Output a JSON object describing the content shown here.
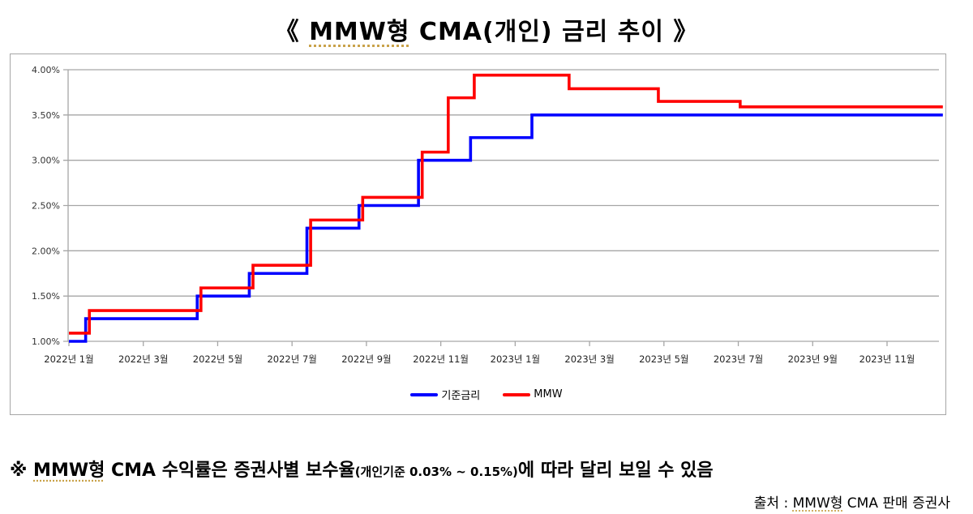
{
  "title": {
    "open_bracket": "《",
    "main_underlined": "MMW형",
    "rest": " CMA(개인) 금리 추이 ",
    "close_bracket": "》"
  },
  "legend": [
    {
      "label": "기준금리",
      "color": "#0000ff"
    },
    {
      "label": "MMW",
      "color": "#ff0000"
    }
  ],
  "note": {
    "prefix": "※ ",
    "underlined": "MMW형",
    "text1": " CMA 수익률은 증권사별 보수율",
    "small": "(개인기준 0.03% ~ 0.15%)",
    "text2": "에 따라 달리 보일 수 있음"
  },
  "source": {
    "label": "출처 : ",
    "underlined": "MMW형",
    "rest": " CMA 판매 증권사"
  },
  "chart_data": {
    "type": "line",
    "subtype": "step",
    "title": "《 MMW형 CMA(개인) 금리 추이 》",
    "xlabel": "",
    "ylabel": "",
    "ylim": [
      1.0,
      4.0
    ],
    "yticks": [
      "1.00%",
      "1.50%",
      "2.00%",
      "2.50%",
      "3.00%",
      "3.50%",
      "4.00%"
    ],
    "xticks": [
      "2022년 1월",
      "2022년 3월",
      "2022년 5월",
      "2022년 7월",
      "2022년 9월",
      "2022년 11월",
      "2023년 1월",
      "2023년 3월",
      "2023년 5월",
      "2023년 7월",
      "2023년 9월",
      "2023년 11월"
    ],
    "grid": "horizontal",
    "legend_position": "bottom",
    "x_unit": "months since 2022-01 (0 = 2022년 1월)",
    "x_range": [
      0,
      23.5
    ],
    "series": [
      {
        "name": "기준금리",
        "color": "#0000ff",
        "steps": [
          {
            "x": 0.0,
            "y": 1.0
          },
          {
            "x": 0.45,
            "y": 1.25
          },
          {
            "x": 3.45,
            "y": 1.5
          },
          {
            "x": 4.85,
            "y": 1.75
          },
          {
            "x": 6.4,
            "y": 2.25
          },
          {
            "x": 7.8,
            "y": 2.5
          },
          {
            "x": 9.4,
            "y": 3.0
          },
          {
            "x": 10.8,
            "y": 3.25
          },
          {
            "x": 12.45,
            "y": 3.5
          },
          {
            "x": 23.5,
            "y": 3.5
          }
        ]
      },
      {
        "name": "MMW",
        "color": "#ff0000",
        "steps": [
          {
            "x": 0.0,
            "y": 1.09
          },
          {
            "x": 0.55,
            "y": 1.34
          },
          {
            "x": 3.55,
            "y": 1.59
          },
          {
            "x": 4.95,
            "y": 1.84
          },
          {
            "x": 6.5,
            "y": 2.34
          },
          {
            "x": 7.9,
            "y": 2.59
          },
          {
            "x": 9.5,
            "y": 3.09
          },
          {
            "x": 10.2,
            "y": 3.69
          },
          {
            "x": 10.9,
            "y": 3.94
          },
          {
            "x": 13.45,
            "y": 3.79
          },
          {
            "x": 15.85,
            "y": 3.65
          },
          {
            "x": 18.05,
            "y": 3.59
          },
          {
            "x": 23.5,
            "y": 3.59
          }
        ]
      }
    ]
  }
}
